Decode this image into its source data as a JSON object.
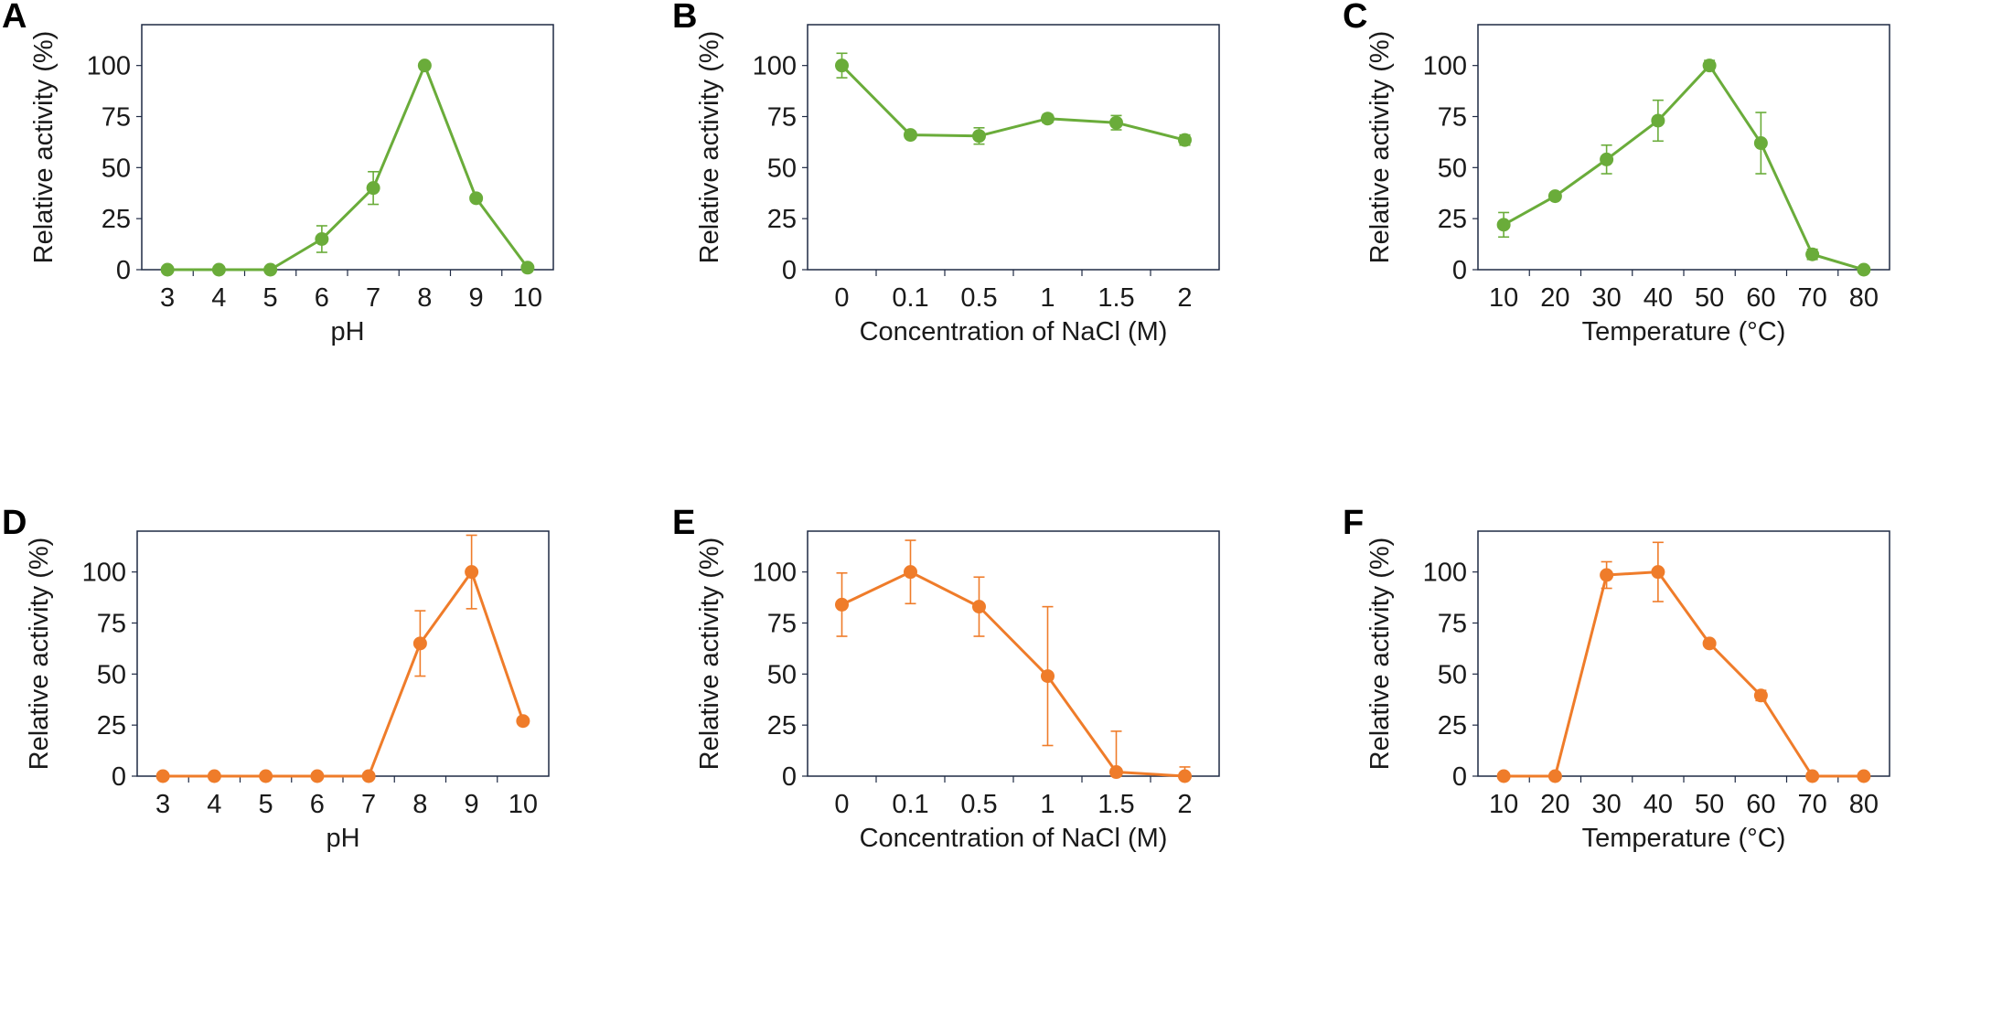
{
  "colors": {
    "green": "#6aac3a",
    "orange": "#ef7c2a",
    "frame": "#1f2a44"
  },
  "chart_data": [
    {
      "panel": "A",
      "type": "line",
      "color": "green",
      "categories": [
        "3",
        "4",
        "5",
        "6",
        "7",
        "8",
        "9",
        "10"
      ],
      "values": [
        0,
        0,
        0,
        15,
        40,
        100,
        35,
        1
      ],
      "errors": [
        0,
        0,
        0,
        6.5,
        8,
        0,
        0,
        0
      ],
      "ylabel": "Relative  activity (%)",
      "xlabel": "pH",
      "yticks": [
        "0",
        "25",
        "50",
        "75",
        "100"
      ],
      "ylim": [
        0,
        120
      ]
    },
    {
      "panel": "B",
      "type": "line",
      "color": "green",
      "categories": [
        "0",
        "0.1",
        "0.5",
        "1",
        "1.5",
        "2"
      ],
      "values": [
        100,
        66,
        65.5,
        74,
        72,
        63.5
      ],
      "errors": [
        6,
        0,
        4,
        2,
        3.5,
        2.5
      ],
      "ylabel": "Relative activity (%)",
      "xlabel": "Concentration of NaCl (M)",
      "yticks": [
        "0",
        "25",
        "50",
        "75",
        "100"
      ],
      "ylim": [
        0,
        120
      ]
    },
    {
      "panel": "C",
      "type": "line",
      "color": "green",
      "categories": [
        "10",
        "20",
        "30",
        "40",
        "50",
        "60",
        "70",
        "80"
      ],
      "values": [
        22,
        36,
        54,
        73,
        100,
        62,
        7.5,
        0
      ],
      "errors": [
        6,
        0,
        7,
        10,
        2.5,
        15,
        2.5,
        0
      ],
      "ylabel": "Relative activity (%)",
      "xlabel": "Temperature (°C)",
      "yticks": [
        "0",
        "25",
        "50",
        "75",
        "100"
      ],
      "ylim": [
        0,
        120
      ]
    },
    {
      "panel": "D",
      "type": "line",
      "color": "orange",
      "categories": [
        "3",
        "4",
        "5",
        "6",
        "7",
        "8",
        "9",
        "10"
      ],
      "values": [
        0,
        0,
        0,
        0,
        0,
        65,
        100,
        27
      ],
      "errors": [
        0,
        0,
        0,
        0,
        0,
        16,
        18,
        0
      ],
      "ylabel": "Relative activity (%)",
      "xlabel": "pH",
      "yticks": [
        "0",
        "25",
        "50",
        "75",
        "100"
      ],
      "ylim": [
        0,
        120
      ]
    },
    {
      "panel": "E",
      "type": "line",
      "color": "orange",
      "categories": [
        "0",
        "0.1",
        "0.5",
        "1",
        "1.5",
        "2"
      ],
      "values": [
        84,
        100,
        83,
        49,
        2,
        0
      ],
      "errors": [
        15.5,
        15.5,
        14.5,
        34,
        20,
        4.5
      ],
      "ylabel": "Relative activity (%)",
      "xlabel": "Concentration of NaCl (M)",
      "yticks": [
        "0",
        "25",
        "50",
        "75",
        "100"
      ],
      "ylim": [
        0,
        120
      ]
    },
    {
      "panel": "F",
      "type": "line",
      "color": "orange",
      "categories": [
        "10",
        "20",
        "30",
        "40",
        "50",
        "60",
        "70",
        "80"
      ],
      "values": [
        0,
        0,
        98.5,
        100,
        65,
        39.5,
        0,
        0
      ],
      "errors": [
        0,
        0,
        6.5,
        14.5,
        0,
        2.5,
        0,
        0
      ],
      "ylabel": "Relative activity (%)",
      "xlabel": "Temperature (°C)",
      "yticks": [
        "0",
        "25",
        "50",
        "75",
        "100"
      ],
      "ylim": [
        0,
        120
      ]
    }
  ]
}
